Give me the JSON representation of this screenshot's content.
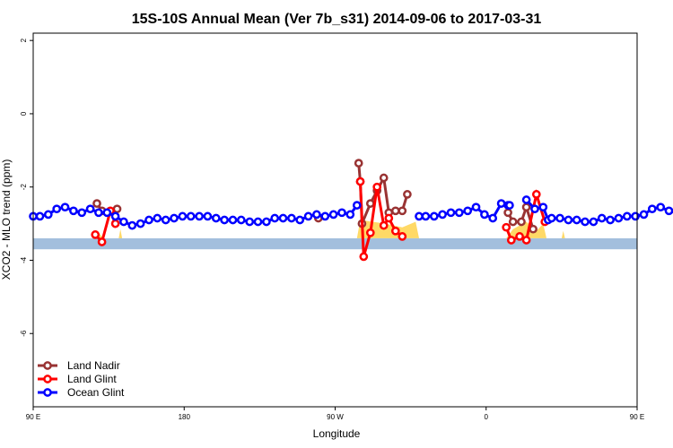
{
  "chart_data": {
    "type": "line",
    "title": "15S-10S Annual Mean (Ver 7b_s31)   2014-09-06 to 2017-03-31",
    "xlabel": "Longitude",
    "ylabel": "XCO2 - MLO trend (ppm)",
    "xlim": [
      90,
      450
    ],
    "ylim": [
      -8,
      2.2
    ],
    "x_ticks": [
      {
        "value": 90,
        "label": "90 E"
      },
      {
        "value": 180,
        "label": "180"
      },
      {
        "value": 270,
        "label": "90 W"
      },
      {
        "value": 360,
        "label": "0"
      },
      {
        "value": 450,
        "label": "90 E"
      },
      {
        "value": 540,
        "label": "180"
      }
    ],
    "y_ticks": [
      {
        "value": 2,
        "label": "2"
      },
      {
        "value": 0,
        "label": "0"
      },
      {
        "value": -2,
        "label": "-2"
      },
      {
        "value": -4,
        "label": "-4"
      },
      {
        "value": -6,
        "label": "-6"
      }
    ],
    "legend_position": "bottom-left",
    "band": {
      "y_top": -3.4,
      "y_bottom": -3.7,
      "color": "#a3bfdd"
    },
    "colors": {
      "land_nadir": "#993333",
      "land_glint": "#ff0000",
      "ocean_glint": "#0000ff",
      "coverage": "#ffd966"
    },
    "coverage": [
      {
        "x": [
          127,
          129,
          130,
          132
        ],
        "h": [
          0,
          0.15,
          0.1,
          0
        ]
      },
      {
        "x": [
          141,
          142,
          143
        ],
        "h": [
          0,
          0.25,
          0
        ]
      },
      {
        "x": [
          283,
          285,
          300,
          310,
          318,
          320
        ],
        "h": [
          0,
          0.5,
          0.4,
          0.3,
          0.45,
          0
        ]
      },
      {
        "x": [
          372,
          376,
          384,
          390,
          394,
          396
        ],
        "h": [
          0,
          0.25,
          0.45,
          0.2,
          0.4,
          0
        ]
      },
      {
        "x": [
          405,
          406,
          407
        ],
        "h": [
          0,
          0.2,
          0
        ]
      },
      {
        "x": [
          487,
          489,
          490,
          492
        ],
        "h": [
          0,
          0.15,
          0.1,
          0
        ]
      },
      {
        "x": [
          501,
          502,
          503
        ],
        "h": [
          0,
          0.25,
          0
        ]
      }
    ],
    "series": [
      {
        "name": "Land Nadir",
        "segments": [
          {
            "x": [
              128,
              131,
              140
            ],
            "y": [
              -2.45,
              -2.65,
              -2.6
            ]
          },
          {
            "x": [
              260
            ],
            "y": [
              -2.85
            ]
          },
          {
            "x": [
              284,
              285,
              286,
              291,
              295,
              299,
              302,
              306,
              310,
              313
            ],
            "y": [
              -1.35,
              -1.85,
              -3.0,
              -2.45,
              -2.1,
              -1.75,
              -2.7,
              -2.65,
              -2.65,
              -2.2
            ]
          },
          {
            "x": [
              373,
              376,
              381,
              384,
              388
            ],
            "y": [
              -2.7,
              -2.95,
              -2.95,
              -2.55,
              -3.15
            ]
          },
          {
            "x": [
              488,
              491,
              500
            ],
            "y": [
              -2.45,
              -2.65,
              -2.6
            ]
          }
        ]
      },
      {
        "name": "Land Glint",
        "segments": [
          {
            "x": [
              127,
              131,
              136,
              139
            ],
            "y": [
              -3.3,
              -3.5,
              -2.65,
              -3.0
            ]
          },
          {
            "x": [
              285,
              287,
              291,
              295,
              299,
              302,
              306,
              310
            ],
            "y": [
              -1.85,
              -3.9,
              -3.25,
              -2.0,
              -3.05,
              -2.85,
              -3.2,
              -3.35
            ]
          },
          {
            "x": [
              372,
              375,
              380,
              384,
              390,
              395
            ],
            "y": [
              -3.1,
              -3.45,
              -3.35,
              -3.45,
              -2.2,
              -2.95
            ]
          },
          {
            "x": [
              487,
              491,
              496,
              499
            ],
            "y": [
              -3.3,
              -3.5,
              -2.75,
              -3.0
            ]
          }
        ]
      },
      {
        "name": "Ocean Glint",
        "segments": [
          {
            "x": [
              90,
              94,
              99,
              104,
              109,
              114,
              119,
              124,
              129,
              134,
              139,
              144,
              149,
              154,
              159,
              164,
              169,
              174,
              179,
              184,
              189,
              194,
              199,
              204,
              209,
              214,
              219,
              224,
              229,
              234,
              239,
              244,
              249,
              254,
              259,
              264,
              269,
              274,
              279,
              283
            ],
            "y": [
              -2.8,
              -2.8,
              -2.75,
              -2.6,
              -2.55,
              -2.65,
              -2.7,
              -2.6,
              -2.7,
              -2.7,
              -2.8,
              -2.95,
              -3.05,
              -3.0,
              -2.9,
              -2.85,
              -2.9,
              -2.85,
              -2.8,
              -2.8,
              -2.8,
              -2.8,
              -2.85,
              -2.9,
              -2.9,
              -2.9,
              -2.95,
              -2.95,
              -2.95,
              -2.85,
              -2.85,
              -2.85,
              -2.9,
              -2.8,
              -2.75,
              -2.8,
              -2.75,
              -2.7,
              -2.75,
              -2.5
            ]
          },
          {
            "x": [
              320,
              324,
              329,
              334,
              339,
              344,
              349,
              354,
              359,
              364,
              369,
              373,
              374
            ],
            "y": [
              -2.8,
              -2.8,
              -2.8,
              -2.75,
              -2.7,
              -2.7,
              -2.65,
              -2.55,
              -2.75,
              -2.85,
              -2.45,
              -2.5,
              -2.5
            ]
          },
          {
            "x": [
              384,
              389,
              394,
              397,
              399,
              404,
              409,
              414,
              419,
              424,
              429,
              434,
              439,
              444,
              449,
              454,
              459,
              464,
              469,
              474,
              479,
              484,
              489,
              494,
              499,
              504,
              509,
              514,
              519,
              524,
              529,
              534,
              539,
              540
            ],
            "y": [
              -2.35,
              -2.6,
              -2.55,
              -2.9,
              -2.85,
              -2.85,
              -2.9,
              -2.9,
              -2.95,
              -2.95,
              -2.85,
              -2.9,
              -2.85,
              -2.8,
              -2.8,
              -2.75,
              -2.6,
              -2.55,
              -2.65,
              -2.7,
              -2.6,
              -2.7,
              -2.6,
              -2.7,
              -2.7,
              -2.75,
              -2.95,
              -3.05,
              -3.0,
              -2.95,
              -2.85,
              -2.85,
              -2.9,
              -2.9
            ]
          }
        ]
      }
    ]
  }
}
